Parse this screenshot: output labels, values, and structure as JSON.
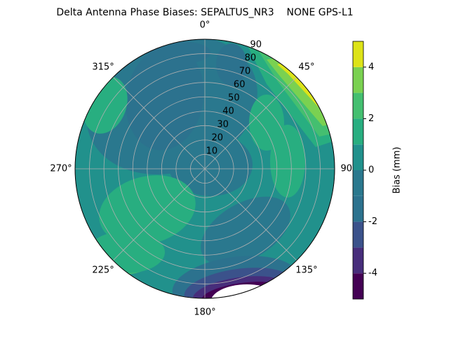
{
  "chart_data": {
    "type": "polar_contour",
    "title": "Delta Antenna Phase Biases: SEPALTUS_NR3    NONE GPS-L1",
    "colorbar_label": "Bias (mm)",
    "levels": [
      -5,
      -4,
      -3,
      -2,
      -1,
      0,
      1,
      2,
      3,
      4,
      5
    ],
    "colors": [
      "#440154",
      "#472d7b",
      "#3b528b",
      "#2c728e",
      "#2a788e",
      "#21918c",
      "#28ae80",
      "#44bf70",
      "#7ad151",
      "#dde318"
    ],
    "clim": [
      -5,
      5
    ],
    "cticks": [
      -4,
      -2,
      0,
      2,
      4
    ],
    "rlim": [
      0,
      90
    ],
    "rticks": [
      10,
      20,
      30,
      40,
      50,
      60,
      70,
      80,
      90
    ],
    "thetaticks": [
      {
        "value": 0,
        "label": "0°"
      },
      {
        "value": 45,
        "label": "45°"
      },
      {
        "value": 90,
        "label": "90°"
      },
      {
        "value": 135,
        "label": "135°"
      },
      {
        "value": 180,
        "label": "180°"
      },
      {
        "value": 225,
        "label": "225°"
      },
      {
        "value": 270,
        "label": "270°"
      },
      {
        "value": 315,
        "label": "315°"
      }
    ],
    "grid": true
  }
}
